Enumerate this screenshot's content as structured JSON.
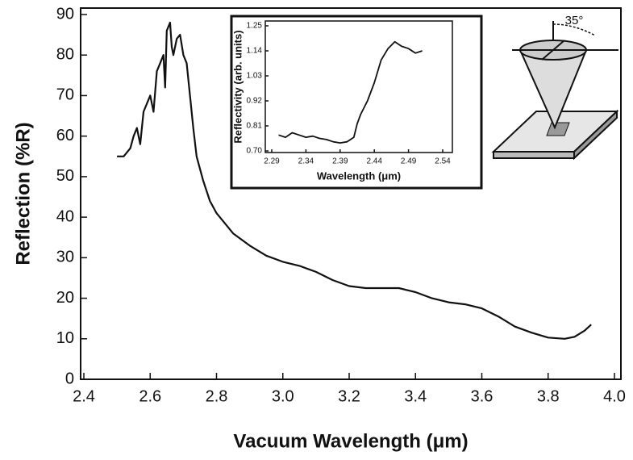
{
  "chart_data": [
    {
      "type": "line",
      "xlabel": "Vacuum  Wavelength  (μm)",
      "ylabel": "Reflection  (%R)",
      "annotation": "35°",
      "color": "#111111",
      "xlim": [
        2.4,
        4.0
      ],
      "ylim": [
        0,
        90
      ],
      "xticks": [
        2.4,
        2.6,
        2.8,
        {
          "value": 3.0,
          "label": "3.0"
        },
        3.2,
        3.4,
        3.6,
        3.8,
        {
          "value": 4.0,
          "label": "4.0"
        }
      ],
      "yticks": [
        0,
        10,
        20,
        30,
        40,
        50,
        60,
        70,
        80,
        90
      ],
      "x": [
        2.5,
        2.52,
        2.54,
        2.55,
        2.56,
        2.57,
        2.58,
        2.59,
        2.6,
        2.61,
        2.62,
        2.63,
        2.64,
        2.645,
        2.65,
        2.66,
        2.665,
        2.67,
        2.68,
        2.69,
        2.7,
        2.71,
        2.72,
        2.73,
        2.74,
        2.76,
        2.78,
        2.8,
        2.85,
        2.9,
        2.95,
        3.0,
        3.05,
        3.1,
        3.15,
        3.2,
        3.25,
        3.3,
        3.35,
        3.4,
        3.45,
        3.5,
        3.55,
        3.6,
        3.65,
        3.7,
        3.75,
        3.8,
        3.85,
        3.88,
        3.91,
        3.93
      ],
      "values": [
        55,
        55,
        57,
        60,
        62,
        58,
        66,
        68,
        70,
        66,
        76,
        78,
        80,
        72,
        86,
        88,
        82,
        80,
        84,
        85,
        80,
        78,
        70,
        62,
        55,
        49,
        44,
        41,
        36,
        33,
        30.5,
        29,
        28,
        26.5,
        24.5,
        23,
        22.5,
        22.5,
        22.5,
        21.5,
        20,
        19,
        18.5,
        17.5,
        15.5,
        13,
        11.5,
        10.3,
        10,
        10.5,
        12,
        13.5
      ]
    },
    {
      "type": "line",
      "xlabel": "Wavelength  (μm)",
      "ylabel": "Reflectivity  (arb. units)",
      "color": "#111111",
      "xlim": [
        2.29,
        2.54
      ],
      "ylim": [
        0.7,
        1.25
      ],
      "xticks": [
        2.29,
        2.34,
        2.39,
        2.44,
        2.49,
        2.54
      ],
      "yticks": [
        {
          "value": 0.7,
          "label": "0.70"
        },
        0.81,
        0.92,
        1.03,
        1.14,
        1.25
      ],
      "x": [
        2.3,
        2.31,
        2.32,
        2.33,
        2.34,
        2.35,
        2.36,
        2.37,
        2.38,
        2.39,
        2.4,
        2.41,
        2.415,
        2.42,
        2.43,
        2.44,
        2.45,
        2.46,
        2.47,
        2.48,
        2.49,
        2.5,
        2.51
      ],
      "values": [
        0.77,
        0.76,
        0.78,
        0.77,
        0.76,
        0.765,
        0.755,
        0.75,
        0.74,
        0.735,
        0.74,
        0.76,
        0.82,
        0.86,
        0.92,
        1.0,
        1.1,
        1.15,
        1.18,
        1.16,
        1.15,
        1.13,
        1.14
      ]
    }
  ]
}
